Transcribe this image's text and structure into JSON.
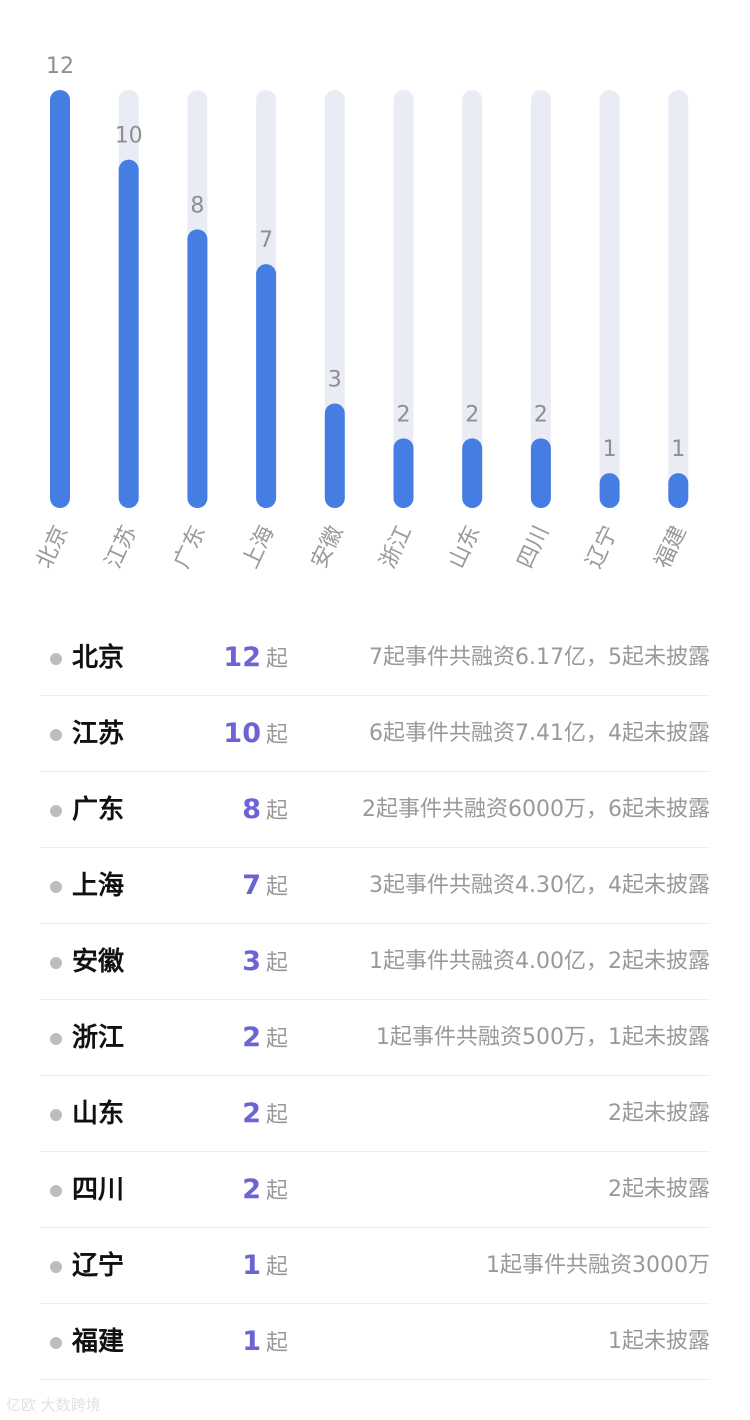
{
  "chart_data": {
    "type": "bar",
    "categories": [
      "北京",
      "江苏",
      "广东",
      "上海",
      "安徽",
      "浙江",
      "山东",
      "四川",
      "辽宁",
      "福建"
    ],
    "values": [
      12,
      10,
      8,
      7,
      3,
      2,
      2,
      2,
      1,
      1
    ],
    "ylim": [
      0,
      12
    ],
    "grid": false,
    "colors": {
      "bar": "#457de3",
      "track": "#e9ecf4"
    }
  },
  "list": {
    "unit": "起",
    "rows": [
      {
        "province": "北京",
        "count": "12",
        "desc": "7起事件共融资6.17亿，5起未披露"
      },
      {
        "province": "江苏",
        "count": "10",
        "desc": "6起事件共融资7.41亿，4起未披露"
      },
      {
        "province": "广东",
        "count": "8",
        "desc": "2起事件共融资6000万，6起未披露"
      },
      {
        "province": "上海",
        "count": "7",
        "desc": "3起事件共融资4.30亿，4起未披露"
      },
      {
        "province": "安徽",
        "count": "3",
        "desc": "1起事件共融资4.00亿，2起未披露"
      },
      {
        "province": "浙江",
        "count": "2",
        "desc": "1起事件共融资500万，1起未披露"
      },
      {
        "province": "山东",
        "count": "2",
        "desc": "2起未披露"
      },
      {
        "province": "四川",
        "count": "2",
        "desc": "2起未披露"
      },
      {
        "province": "辽宁",
        "count": "1",
        "desc": "1起事件共融资3000万"
      },
      {
        "province": "福建",
        "count": "1",
        "desc": "1起未披露"
      }
    ]
  },
  "watermark": "亿欧 大数跨境",
  "colors": {
    "count": "#6b63d6",
    "dot": "#bdbdbd",
    "text_muted": "#999999"
  }
}
